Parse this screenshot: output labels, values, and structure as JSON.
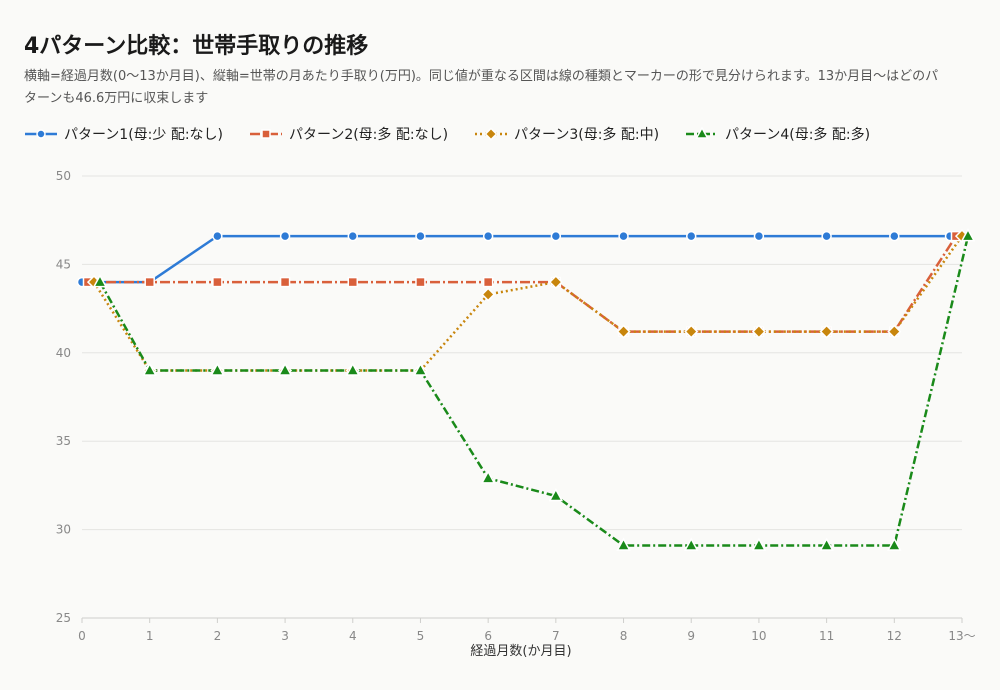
{
  "chart_data": {
    "type": "line",
    "title": "4パターン比較：世帯手取りの推移",
    "subtitle": "横軸=経過月数(0〜13か月目)、縦軸=世帯の月あたり手取り(万円)。同じ値が重なる区間は線の種類とマーカーの形で見分けられます。13か月目〜はどのパターンも46.6万円に収束します",
    "xlabel": "経過月数(か月目)",
    "ylabel": "",
    "categories": [
      "0",
      "1",
      "2",
      "3",
      "4",
      "5",
      "6",
      "7",
      "8",
      "9",
      "10",
      "11",
      "12",
      "13〜"
    ],
    "ylim": [
      25,
      50
    ],
    "yticks": [
      25,
      30,
      35,
      40,
      45,
      50
    ],
    "grid": true,
    "legend_position": "top-left",
    "series": [
      {
        "name": "パターン1(母:少 配:なし)",
        "color": "#2e7bd6",
        "marker": "circle",
        "dash": "solid",
        "values": [
          44.0,
          44.0,
          46.6,
          46.6,
          46.6,
          46.6,
          46.6,
          46.6,
          46.6,
          46.6,
          46.6,
          46.6,
          46.6,
          46.6
        ]
      },
      {
        "name": "パターン2(母:多 配:なし)",
        "color": "#d9603b",
        "marker": "square",
        "dash": "longdash",
        "values": [
          44.0,
          44.0,
          44.0,
          44.0,
          44.0,
          44.0,
          44.0,
          44.0,
          41.2,
          41.2,
          41.2,
          41.2,
          41.2,
          46.6
        ]
      },
      {
        "name": "パターン3(母:多 配:中)",
        "color": "#c8860d",
        "marker": "diamond",
        "dash": "dot",
        "values": [
          44.0,
          39.0,
          39.0,
          39.0,
          39.0,
          39.0,
          43.3,
          44.0,
          41.2,
          41.2,
          41.2,
          41.2,
          41.2,
          46.6
        ]
      },
      {
        "name": "パターン4(母:多 配:多)",
        "color": "#1a8a1a",
        "marker": "triangle",
        "dash": "dashdot",
        "values": [
          44.0,
          39.0,
          39.0,
          39.0,
          39.0,
          39.0,
          32.9,
          31.9,
          29.1,
          29.1,
          29.1,
          29.1,
          29.1,
          46.6
        ]
      }
    ]
  }
}
